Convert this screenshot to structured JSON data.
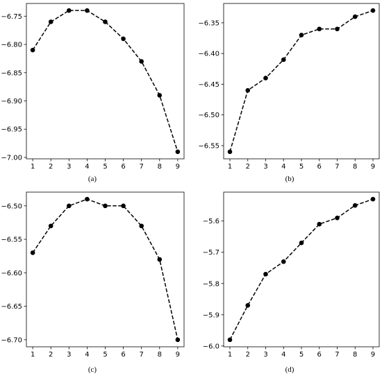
{
  "chart_data": [
    {
      "type": "line",
      "caption": "(a)",
      "x": [
        1,
        2,
        3,
        4,
        5,
        6,
        7,
        8,
        9
      ],
      "y": [
        -6.81,
        -6.76,
        -6.74,
        -6.74,
        -6.76,
        -6.79,
        -6.83,
        -6.89,
        -6.99
      ],
      "xticks": [
        "1",
        "2",
        "3",
        "4",
        "5",
        "6",
        "7",
        "8",
        "9"
      ],
      "yticks": [
        "-7.00",
        "-6.95",
        "-6.90",
        "-6.85",
        "-6.80",
        "-6.75"
      ],
      "xlim": [
        0.65,
        9.35
      ],
      "ylim": [
        -7.0025,
        -6.7275
      ],
      "line_style": "dashed",
      "marker": "circle",
      "color": "#000000",
      "grid": false
    },
    {
      "type": "line",
      "caption": "(b)",
      "x": [
        1,
        2,
        3,
        4,
        5,
        6,
        7,
        8,
        9
      ],
      "y": [
        -6.56,
        -6.46,
        -6.44,
        -6.41,
        -6.37,
        -6.36,
        -6.36,
        -6.34,
        -6.33
      ],
      "xticks": [
        "1",
        "2",
        "3",
        "4",
        "5",
        "6",
        "7",
        "8",
        "9"
      ],
      "yticks": [
        "-6.55",
        "-6.50",
        "-6.45",
        "-6.40",
        "-6.35"
      ],
      "xlim": [
        0.65,
        9.35
      ],
      "ylim": [
        -6.5715,
        -6.3185
      ],
      "line_style": "dashed",
      "marker": "circle",
      "color": "#000000",
      "grid": false
    },
    {
      "type": "line",
      "caption": "(c)",
      "x": [
        1,
        2,
        3,
        4,
        5,
        6,
        7,
        8,
        9
      ],
      "y": [
        -6.57,
        -6.53,
        -6.5,
        -6.49,
        -6.5,
        -6.5,
        -6.53,
        -6.58,
        -6.7
      ],
      "xticks": [
        "1",
        "2",
        "3",
        "4",
        "5",
        "6",
        "7",
        "8",
        "9"
      ],
      "yticks": [
        "-6.70",
        "-6.65",
        "-6.60",
        "-6.55",
        "-6.50"
      ],
      "xlim": [
        0.65,
        9.35
      ],
      "ylim": [
        -6.7105,
        -6.4795
      ],
      "line_style": "dashed",
      "marker": "circle",
      "color": "#000000",
      "grid": false
    },
    {
      "type": "line",
      "caption": "(d)",
      "x": [
        1,
        2,
        3,
        4,
        5,
        6,
        7,
        8,
        9
      ],
      "y": [
        -5.98,
        -5.87,
        -5.77,
        -5.73,
        -5.67,
        -5.61,
        -5.59,
        -5.55,
        -5.53
      ],
      "xticks": [
        "1",
        "2",
        "3",
        "4",
        "5",
        "6",
        "7",
        "8",
        "9"
      ],
      "yticks": [
        "-6.0",
        "-5.9",
        "-5.8",
        "-5.7",
        "-5.6"
      ],
      "xlim": [
        0.65,
        9.35
      ],
      "ylim": [
        -6.0025,
        -5.5075
      ],
      "line_style": "dashed",
      "marker": "circle",
      "color": "#000000",
      "grid": false
    }
  ]
}
